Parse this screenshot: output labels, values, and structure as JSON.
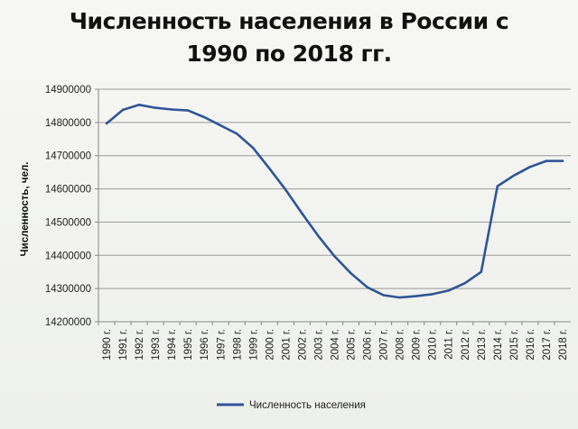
{
  "chart_data": {
    "type": "line",
    "title": "Численность населения в России с 1990 по 2018 гг.",
    "ylabel": "Численность, чел.",
    "xlabel": "",
    "ylim": [
      14200000,
      14900000
    ],
    "yticks": [
      "14200000",
      "14300000",
      "14400000",
      "14500000",
      "14600000",
      "14700000",
      "14800000",
      "14900000"
    ],
    "categories": [
      "1990 г.",
      "1991 г.",
      "1992 г.",
      "1993 г.",
      "1994 г.",
      "1995 г.",
      "1996 г.",
      "1997 г.",
      "1998 г.",
      "1999 г.",
      "2000 г.",
      "2001 г.",
      "2002 г.",
      "2003 г.",
      "2004 г.",
      "2005 г.",
      "2006 г.",
      "2007 г.",
      "2008 г.",
      "2009 г.",
      "2010 г.",
      "2011 г.",
      "2012 г.",
      "2013 г.",
      "2014 г.",
      "2015 г.",
      "2016 г.",
      "2017 г.",
      "2018 г."
    ],
    "series": [
      {
        "name": "Численность населения",
        "color": "#2f5597",
        "values": [
          14797000,
          14838000,
          14853000,
          14844000,
          14839000,
          14836000,
          14816000,
          14791000,
          14766000,
          14723000,
          14661000,
          14597000,
          14526000,
          14458000,
          14397000,
          14346000,
          14304000,
          14280000,
          14273000,
          14277000,
          14283000,
          14294000,
          14316000,
          14350000,
          14608000,
          14640000,
          14666000,
          14684000,
          14684000
        ]
      }
    ],
    "grid": true,
    "legend": "bottom"
  }
}
